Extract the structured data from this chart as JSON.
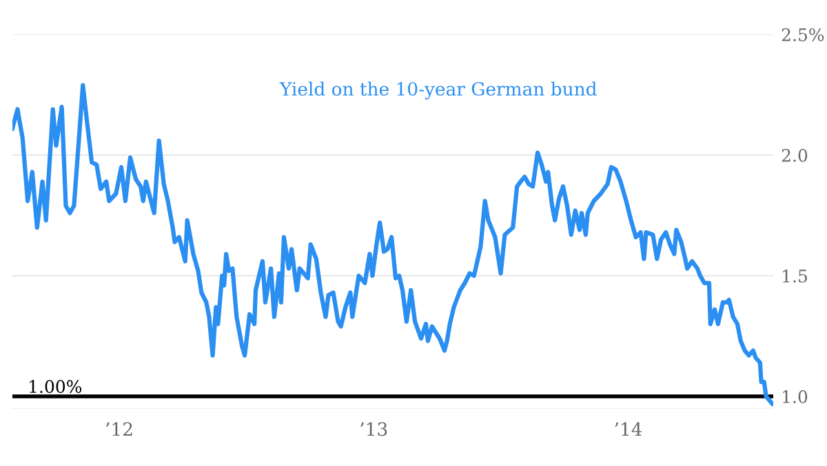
{
  "chart_data": {
    "type": "line",
    "x": [
      2011.58,
      2011.6,
      2011.62,
      2011.64,
      2011.658,
      2011.677,
      2011.698,
      2011.712,
      2011.739,
      2011.752,
      2011.774,
      2011.79,
      2011.806,
      2011.822,
      2011.857,
      2011.873,
      2011.892,
      2011.911,
      2011.927,
      2011.949,
      2011.96,
      2011.987,
      2012.008,
      2012.024,
      2012.043,
      2012.065,
      2012.084,
      2012.094,
      2012.105,
      2012.137,
      2012.156,
      2012.175,
      2012.191,
      2012.21,
      2012.218,
      2012.235,
      2012.259,
      2012.267,
      2012.291,
      2012.31,
      2012.323,
      2012.342,
      2012.353,
      2012.367,
      2012.38,
      2012.388,
      2012.404,
      2012.412,
      2012.42,
      2012.431,
      2012.445,
      2012.461,
      2012.482,
      2012.493,
      2012.512,
      2012.531,
      2012.536,
      2012.563,
      2012.574,
      2012.596,
      2012.609,
      2012.628,
      2012.636,
      2012.647,
      2012.666,
      2012.677,
      2012.698,
      2012.709,
      2012.741,
      2012.752,
      2012.774,
      2012.792,
      2012.811,
      2012.822,
      2012.841,
      2012.86,
      2012.871,
      2012.889,
      2012.908,
      2012.916,
      2012.941,
      2012.965,
      2012.984,
      2012.995,
      2013.011,
      2013.024,
      2013.04,
      2013.054,
      2013.07,
      2013.086,
      2013.1,
      2013.113,
      2013.129,
      2013.146,
      2013.162,
      2013.186,
      2013.205,
      2013.213,
      2013.229,
      2013.259,
      2013.278,
      2013.288,
      2013.299,
      2013.315,
      2013.34,
      2013.358,
      2013.377,
      2013.394,
      2013.42,
      2013.437,
      2013.45,
      2013.477,
      2013.499,
      2013.515,
      2013.547,
      2013.563,
      2013.577,
      2013.593,
      2013.609,
      2013.625,
      2013.644,
      2013.66,
      2013.677,
      2013.685,
      2013.701,
      2013.712,
      2013.728,
      2013.744,
      2013.76,
      2013.776,
      2013.792,
      2013.809,
      2013.817,
      2013.833,
      2013.841,
      2013.865,
      2013.892,
      2013.919,
      2013.933,
      2013.951,
      2013.97,
      2013.992,
      2014.011,
      2014.03,
      2014.049,
      2014.062,
      2014.07,
      2014.097,
      2014.113,
      2014.129,
      2014.148,
      2014.164,
      2014.181,
      2014.189,
      2014.208,
      2014.224,
      2014.232,
      2014.251,
      2014.272,
      2014.283,
      2014.299,
      2014.318,
      2014.323,
      2014.34,
      2014.353,
      2014.372,
      2014.388,
      2014.396,
      2014.412,
      2014.429,
      2014.442,
      2014.458,
      2014.474,
      2014.491,
      2014.501,
      2014.518,
      2014.523,
      2014.534,
      2014.542,
      2014.566
    ],
    "series": [
      {
        "name": "Yield on the 10-year German bund",
        "color": "#2b8ff2",
        "values": [
          2.11,
          2.19,
          2.07,
          1.81,
          1.93,
          1.7,
          1.89,
          1.73,
          2.19,
          2.04,
          2.2,
          1.79,
          1.76,
          1.79,
          2.29,
          2.14,
          1.97,
          1.96,
          1.86,
          1.89,
          1.81,
          1.84,
          1.95,
          1.81,
          1.99,
          1.9,
          1.87,
          1.81,
          1.89,
          1.76,
          2.06,
          1.88,
          1.81,
          1.7,
          1.64,
          1.66,
          1.56,
          1.73,
          1.59,
          1.52,
          1.43,
          1.39,
          1.33,
          1.17,
          1.37,
          1.3,
          1.5,
          1.46,
          1.59,
          1.52,
          1.53,
          1.33,
          1.21,
          1.17,
          1.34,
          1.3,
          1.44,
          1.56,
          1.39,
          1.53,
          1.33,
          1.51,
          1.39,
          1.66,
          1.53,
          1.61,
          1.44,
          1.53,
          1.49,
          1.63,
          1.57,
          1.43,
          1.33,
          1.42,
          1.43,
          1.31,
          1.29,
          1.37,
          1.43,
          1.33,
          1.5,
          1.47,
          1.59,
          1.5,
          1.63,
          1.72,
          1.6,
          1.61,
          1.66,
          1.49,
          1.5,
          1.44,
          1.31,
          1.44,
          1.31,
          1.24,
          1.3,
          1.23,
          1.29,
          1.24,
          1.19,
          1.23,
          1.3,
          1.37,
          1.44,
          1.47,
          1.51,
          1.5,
          1.62,
          1.81,
          1.73,
          1.66,
          1.51,
          1.67,
          1.7,
          1.87,
          1.89,
          1.91,
          1.88,
          1.87,
          2.01,
          1.96,
          1.89,
          1.93,
          1.79,
          1.73,
          1.82,
          1.87,
          1.79,
          1.67,
          1.77,
          1.69,
          1.76,
          1.67,
          1.76,
          1.81,
          1.84,
          1.88,
          1.95,
          1.94,
          1.89,
          1.81,
          1.73,
          1.66,
          1.68,
          1.57,
          1.68,
          1.67,
          1.57,
          1.65,
          1.68,
          1.63,
          1.59,
          1.69,
          1.64,
          1.57,
          1.53,
          1.56,
          1.53,
          1.5,
          1.47,
          1.47,
          1.3,
          1.36,
          1.3,
          1.39,
          1.39,
          1.4,
          1.33,
          1.3,
          1.23,
          1.19,
          1.17,
          1.19,
          1.16,
          1.14,
          1.06,
          1.06,
          1.0,
          0.97
        ]
      }
    ],
    "xlim": [
      2011.58,
      2014.57
    ],
    "xticks": [
      {
        "value": 2012,
        "label": "’12"
      },
      {
        "value": 2013,
        "label": "’13"
      },
      {
        "value": 2014,
        "label": "’14"
      }
    ],
    "ylim": [
      0.95,
      2.5
    ],
    "yticks": [
      {
        "value": 1.0,
        "label": "1.0"
      },
      {
        "value": 1.5,
        "label": "1.5"
      },
      {
        "value": 2.0,
        "label": "2.0"
      },
      {
        "value": 2.5,
        "label": "2.5%"
      }
    ],
    "grid": "y",
    "ref_lines": [
      {
        "axis": "y",
        "value": 1.0,
        "label": "1.00%",
        "color": "#000000"
      }
    ]
  }
}
